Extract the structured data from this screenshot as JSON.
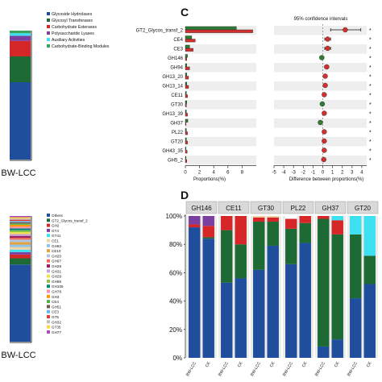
{
  "panel_c_label": "C",
  "panel_d_label": "D",
  "legend_top": {
    "items": [
      {
        "label": "Glycoside Hydrolases",
        "color": "#1f4e9c"
      },
      {
        "label": "Glycosyl Transferases",
        "color": "#1d6a35"
      },
      {
        "label": "Carbohydrate Esterases",
        "color": "#d62728"
      },
      {
        "label": "Polysaccharide Lyases",
        "color": "#7b3fa0"
      },
      {
        "label": "Auxiliary Activities",
        "color": "#3de0f0"
      },
      {
        "label": "Carbohydrate-Binding Modules",
        "color": "#3aa55a"
      }
    ]
  },
  "stack_top": {
    "label": "BW-LCC",
    "segments": [
      {
        "name": "Glycoside Hydrolases",
        "value": 0.6,
        "color": "#1f4e9c"
      },
      {
        "name": "Glycosyl Transferases",
        "value": 0.2,
        "color": "#1d6a35"
      },
      {
        "name": "Carbohydrate Esterases",
        "value": 0.12,
        "color": "#d62728"
      },
      {
        "name": "Polysaccharide Lyases",
        "value": 0.04,
        "color": "#7b3fa0"
      },
      {
        "name": "Auxiliary Activities",
        "value": 0.02,
        "color": "#3de0f0"
      },
      {
        "name": "Carbohydrate-Binding Modules",
        "value": 0.02,
        "color": "#3aa55a"
      }
    ]
  },
  "legend_bottom": {
    "items": [
      {
        "label": "Others",
        "color": "#1f4e9c"
      },
      {
        "label": "GT2_Glycos_transf_2",
        "color": "#1d6a35"
      },
      {
        "label": "GH2",
        "color": "#d62728"
      },
      {
        "label": "GT4",
        "color": "#7b3fa0"
      },
      {
        "label": "GT41",
        "color": "#3de0f0"
      },
      {
        "label": "CE1",
        "color": "#f1d3a2"
      },
      {
        "label": "GH92",
        "color": "#8ec5e8"
      },
      {
        "label": "CE10",
        "color": "#e6a23c"
      },
      {
        "label": "GH20",
        "color": "#b0c4e0"
      },
      {
        "label": "GH97",
        "color": "#f06a5a"
      },
      {
        "label": "GH28",
        "color": "#9e1f63"
      },
      {
        "label": "GH31",
        "color": "#c7a1d8"
      },
      {
        "label": "GH29",
        "color": "#f2e24c"
      },
      {
        "label": "GH95",
        "color": "#8bc34a"
      },
      {
        "label": "GH105",
        "color": "#00897b"
      },
      {
        "label": "GH78",
        "color": "#f48fb1"
      },
      {
        "label": "GH3",
        "color": "#ff9800"
      },
      {
        "label": "CE4",
        "color": "#4caf50"
      },
      {
        "label": "GH51",
        "color": "#795548"
      },
      {
        "label": "CE3",
        "color": "#64b5f6"
      },
      {
        "label": "GT5",
        "color": "#e53935"
      },
      {
        "label": "GH32",
        "color": "#bdbdbd"
      },
      {
        "label": "GT35",
        "color": "#fdd835"
      },
      {
        "label": "GH77",
        "color": "#ab47bc"
      }
    ]
  },
  "stack_bottom": {
    "label": "BW-LCC",
    "segments": [
      {
        "name": "Others",
        "value": 0.62,
        "color": "#1f4e9c"
      },
      {
        "name": "GT2_Glycos_transf_2",
        "value": 0.05,
        "color": "#1d6a35"
      },
      {
        "name": "GH2",
        "value": 0.03,
        "color": "#d62728"
      },
      {
        "name": "GT4",
        "value": 0.02,
        "color": "#7b3fa0"
      },
      {
        "name": "GT41",
        "value": 0.02,
        "color": "#3de0f0"
      },
      {
        "name": "CE1",
        "value": 0.02,
        "color": "#f1d3a2"
      },
      {
        "name": "GH92",
        "value": 0.02,
        "color": "#8ec5e8"
      },
      {
        "name": "CE10",
        "value": 0.02,
        "color": "#e6a23c"
      },
      {
        "name": "GH20",
        "value": 0.02,
        "color": "#b0c4e0"
      },
      {
        "name": "GH97",
        "value": 0.015,
        "color": "#f06a5a"
      },
      {
        "name": "GH28",
        "value": 0.015,
        "color": "#9e1f63"
      },
      {
        "name": "GH31",
        "value": 0.015,
        "color": "#c7a1d8"
      },
      {
        "name": "GH29",
        "value": 0.015,
        "color": "#f2e24c"
      },
      {
        "name": "GH95",
        "value": 0.015,
        "color": "#8bc34a"
      },
      {
        "name": "GH105",
        "value": 0.015,
        "color": "#00897b"
      },
      {
        "name": "GH78",
        "value": 0.015,
        "color": "#f48fb1"
      },
      {
        "name": "GH3",
        "value": 0.015,
        "color": "#ff9800"
      },
      {
        "name": "CE4",
        "value": 0.01,
        "color": "#4caf50"
      },
      {
        "name": "GH51",
        "value": 0.01,
        "color": "#795548"
      },
      {
        "name": "CE3",
        "value": 0.01,
        "color": "#64b5f6"
      },
      {
        "name": "GT5",
        "value": 0.01,
        "color": "#e53935"
      },
      {
        "name": "GH32",
        "value": 0.01,
        "color": "#bdbdbd"
      },
      {
        "name": "GT35",
        "value": 0.01,
        "color": "#fdd835"
      },
      {
        "name": "GH77",
        "value": 0.01,
        "color": "#ab47bc"
      }
    ]
  },
  "chart_data": [
    {
      "type": "bar",
      "orientation": "horizontal",
      "categories": [
        "GT2_Glycos_transf_2",
        "CE4",
        "CE3",
        "GH146",
        "GH94",
        "GH13_20",
        "GH13_14",
        "CE11",
        "GT30",
        "GH13_39",
        "GH37",
        "PL22",
        "GT20",
        "GH43_35",
        "GH5_2"
      ],
      "series": [
        {
          "color": "#2e7d32",
          "values": [
            7.2,
            0.9,
            0.6,
            0.3,
            0.2,
            0.2,
            0.2,
            0.15,
            0.2,
            0.15,
            0.35,
            0.15,
            0.15,
            0.1,
            0.1
          ]
        },
        {
          "color": "#d32f2f",
          "values": [
            9.5,
            1.4,
            1.1,
            0.2,
            0.6,
            0.45,
            0.45,
            0.3,
            0.15,
            0.3,
            0.1,
            0.3,
            0.3,
            0.25,
            0.2
          ]
        }
      ],
      "xlabel": "Proportions(%)",
      "xticks": [
        0,
        2,
        4,
        6,
        8
      ],
      "xlim": [
        0,
        10
      ]
    },
    {
      "type": "scatter",
      "title": "95% confidence intervals",
      "categories": [
        "GT2_Glycos_transf_2",
        "CE4",
        "CE3",
        "GH146",
        "GH94",
        "GH13_20",
        "GH13_14",
        "CE11",
        "GT30",
        "GH13_39",
        "GH37",
        "PL22",
        "GT20",
        "GH43_35",
        "GH5_2"
      ],
      "points": [
        {
          "value": 2.3,
          "ci": [
            0.8,
            3.9
          ],
          "color": "#d32f2f"
        },
        {
          "value": 0.5,
          "ci": [
            0.2,
            0.8
          ],
          "color": "#d32f2f"
        },
        {
          "value": 0.5,
          "ci": [
            0.2,
            0.8
          ],
          "color": "#d32f2f"
        },
        {
          "value": -0.1,
          "ci": [
            -0.3,
            0.1
          ],
          "color": "#2e7d32"
        },
        {
          "value": 0.4,
          "ci": [
            0.2,
            0.6
          ],
          "color": "#d32f2f"
        },
        {
          "value": 0.25,
          "ci": [
            0.1,
            0.4
          ],
          "color": "#d32f2f"
        },
        {
          "value": 0.25,
          "ci": [
            0.1,
            0.4
          ],
          "color": "#d32f2f"
        },
        {
          "value": 0.15,
          "ci": [
            0.0,
            0.3
          ],
          "color": "#d32f2f"
        },
        {
          "value": -0.05,
          "ci": [
            -0.15,
            0.05
          ],
          "color": "#2e7d32"
        },
        {
          "value": 0.15,
          "ci": [
            0.0,
            0.3
          ],
          "color": "#d32f2f"
        },
        {
          "value": -0.25,
          "ci": [
            -0.4,
            -0.1
          ],
          "color": "#2e7d32"
        },
        {
          "value": 0.15,
          "ci": [
            0.0,
            0.3
          ],
          "color": "#d32f2f"
        },
        {
          "value": 0.15,
          "ci": [
            0.0,
            0.3
          ],
          "color": "#d32f2f"
        },
        {
          "value": 0.15,
          "ci": [
            0.0,
            0.3
          ],
          "color": "#d32f2f"
        },
        {
          "value": 0.1,
          "ci": [
            0.0,
            0.2
          ],
          "color": "#d32f2f"
        }
      ],
      "xlabel": "Difference between proportions(%)",
      "xticks": [
        -5,
        -4,
        -3,
        -2,
        -1,
        0,
        1,
        2,
        3,
        4
      ],
      "xlim": [
        -5,
        4.5
      ],
      "sig_marker": "*"
    },
    {
      "type": "bar",
      "stacked": true,
      "ylim": [
        0,
        100
      ],
      "yticks": [
        "0%",
        "20%",
        "40%",
        "60%",
        "80%",
        "100%"
      ],
      "groups": [
        {
          "name": "GH146",
          "bars": [
            {
              "label": "BW-LCC",
              "segments": [
                {
                  "value": 92,
                  "color": "#1f4e9c"
                },
                {
                  "value": 0,
                  "color": "#1d6a35"
                },
                {
                  "value": 2,
                  "color": "#d62728"
                },
                {
                  "value": 6,
                  "color": "#7b3fa0"
                }
              ]
            },
            {
              "label": "CK",
              "segments": [
                {
                  "value": 84,
                  "color": "#1f4e9c"
                },
                {
                  "value": 1,
                  "color": "#1d6a35"
                },
                {
                  "value": 8,
                  "color": "#d62728"
                },
                {
                  "value": 7,
                  "color": "#7b3fa0"
                }
              ]
            }
          ]
        },
        {
          "name": "CE11",
          "bars": [
            {
              "label": "BW-LCC",
              "segments": [
                {
                  "value": 53,
                  "color": "#1f4e9c"
                },
                {
                  "value": 37,
                  "color": "#1d6a35"
                },
                {
                  "value": 10,
                  "color": "#d62728"
                }
              ]
            },
            {
              "label": "CK",
              "segments": [
                {
                  "value": 56,
                  "color": "#1f4e9c"
                },
                {
                  "value": 24,
                  "color": "#1d6a35"
                },
                {
                  "value": 20,
                  "color": "#d62728"
                }
              ]
            }
          ]
        },
        {
          "name": "GT30",
          "bars": [
            {
              "label": "BW-LCC",
              "segments": [
                {
                  "value": 62,
                  "color": "#1f4e9c"
                },
                {
                  "value": 34,
                  "color": "#1d6a35"
                },
                {
                  "value": 3,
                  "color": "#d62728"
                },
                {
                  "value": 1,
                  "color": "#f1d3a2"
                }
              ]
            },
            {
              "label": "CK",
              "segments": [
                {
                  "value": 79,
                  "color": "#1f4e9c"
                },
                {
                  "value": 17,
                  "color": "#1d6a35"
                },
                {
                  "value": 3,
                  "color": "#d62728"
                },
                {
                  "value": 1,
                  "color": "#f1d3a2"
                }
              ]
            }
          ]
        },
        {
          "name": "PL22",
          "bars": [
            {
              "label": "BW-LCC",
              "segments": [
                {
                  "value": 66,
                  "color": "#1f4e9c"
                },
                {
                  "value": 25,
                  "color": "#1d6a35"
                },
                {
                  "value": 7,
                  "color": "#d62728"
                },
                {
                  "value": 2,
                  "color": "#ffffff"
                }
              ]
            },
            {
              "label": "CK",
              "segments": [
                {
                  "value": 81,
                  "color": "#1f4e9c"
                },
                {
                  "value": 14,
                  "color": "#1d6a35"
                },
                {
                  "value": 5,
                  "color": "#d62728"
                }
              ]
            }
          ]
        },
        {
          "name": "GH37",
          "bars": [
            {
              "label": "BW-LCC",
              "segments": [
                {
                  "value": 8,
                  "color": "#1f4e9c"
                },
                {
                  "value": 90,
                  "color": "#1d6a35"
                },
                {
                  "value": 2,
                  "color": "#d62728"
                }
              ]
            },
            {
              "label": "CK",
              "segments": [
                {
                  "value": 13,
                  "color": "#1f4e9c"
                },
                {
                  "value": 74,
                  "color": "#1d6a35"
                },
                {
                  "value": 10,
                  "color": "#d62728"
                },
                {
                  "value": 3,
                  "color": "#3de0f0"
                }
              ]
            }
          ]
        },
        {
          "name": "GT20",
          "bars": [
            {
              "label": "BW-LCC",
              "segments": [
                {
                  "value": 42,
                  "color": "#1f4e9c"
                },
                {
                  "value": 45,
                  "color": "#1d6a35"
                },
                {
                  "value": 13,
                  "color": "#3de0f0"
                }
              ]
            },
            {
              "label": "CK",
              "segments": [
                {
                  "value": 52,
                  "color": "#1f4e9c"
                },
                {
                  "value": 20,
                  "color": "#1d6a35"
                },
                {
                  "value": 28,
                  "color": "#3de0f0"
                }
              ]
            }
          ]
        }
      ]
    }
  ]
}
